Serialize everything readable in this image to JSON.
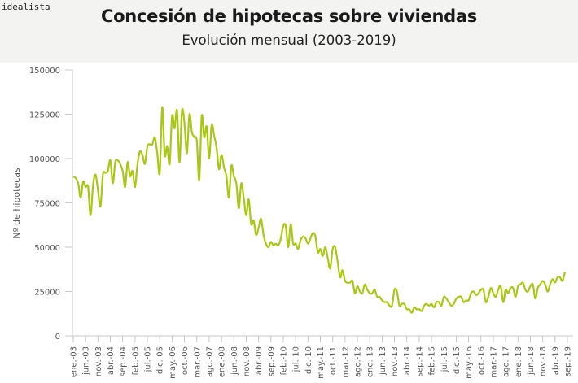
{
  "brand": {
    "logo_text": "idealista"
  },
  "header": {
    "title": "Concesión de hipotecas sobre viviendas",
    "subtitle": "Evolución mensual (2003-2019)"
  },
  "chart_data": {
    "type": "line",
    "title": "Concesión de hipotecas sobre viviendas",
    "subtitle": "Evolución mensual (2003-2019)",
    "xlabel": "",
    "ylabel": "Nº de hipotecas",
    "ylim": [
      0,
      150000
    ],
    "yticks": [
      0,
      25000,
      50000,
      75000,
      100000,
      125000,
      150000
    ],
    "ytick_labels": [
      "0",
      "25000",
      "50000",
      "75000",
      "100000",
      "125000",
      "150000"
    ],
    "grid": false,
    "legend": "none",
    "line_color": "#a8c814",
    "x_start": "2003-01",
    "x_end": "2019-09",
    "x_tick_every_months": 5,
    "xtick_labels": [
      "ene.-03",
      "jun.-03",
      "nov.-03",
      "abr.-04",
      "sep.-04",
      "feb.-05",
      "jul.-05",
      "dic.-05",
      "may.-06",
      "oct.-06",
      "mar.-07",
      "ago.-07",
      "ene.-08",
      "jun.-08",
      "nov.-08",
      "abr.-09",
      "sep.-09",
      "feb.-10",
      "jul.-10",
      "dic.-10",
      "may.-11",
      "oct.-11",
      "mar.-12",
      "ago.-12",
      "ene.-13",
      "jun.-13",
      "nov.-13",
      "abr.-14",
      "sep.-14",
      "feb.-15",
      "jul.-15",
      "dic.-15",
      "may.-16",
      "oct.-16",
      "mar.-17",
      "ago.-17",
      "ene.-18",
      "jun.-18",
      "nov.-18",
      "abr.-19",
      "sep.-19"
    ],
    "series": [
      {
        "name": "Nº de hipotecas",
        "values": [
          90000,
          89000,
          86000,
          78000,
          87000,
          84000,
          84000,
          68000,
          85000,
          91000,
          82000,
          73000,
          91000,
          92000,
          93000,
          99000,
          86000,
          98000,
          99000,
          97000,
          93000,
          84000,
          98000,
          90000,
          93000,
          84000,
          97000,
          104000,
          102000,
          97000,
          107000,
          108000,
          108000,
          112000,
          103000,
          92000,
          129000,
          102000,
          107000,
          97000,
          124000,
          117000,
          127000,
          98000,
          127000,
          120000,
          103000,
          125000,
          115000,
          112000,
          110000,
          88000,
          124000,
          112000,
          118000,
          100000,
          119000,
          113000,
          106000,
          94000,
          102000,
          95000,
          90000,
          78000,
          96000,
          90000,
          86000,
          72000,
          86000,
          78000,
          68000,
          77000,
          63000,
          65000,
          57000,
          61000,
          66000,
          57000,
          52000,
          50000,
          53000,
          51000,
          52000,
          51000,
          55000,
          62000,
          62000,
          50000,
          63000,
          52000,
          52000,
          49000,
          54000,
          56000,
          55000,
          52000,
          55000,
          58000,
          56000,
          47000,
          49000,
          45000,
          50000,
          44000,
          38000,
          49000,
          50000,
          42000,
          33000,
          37000,
          31000,
          30000,
          30000,
          31000,
          24000,
          28000,
          25000,
          24000,
          29000,
          26000,
          24000,
          24000,
          26000,
          22000,
          22000,
          20000,
          19000,
          19000,
          17000,
          17000,
          26000,
          25000,
          17000,
          18000,
          18000,
          15000,
          15000,
          13000,
          16000,
          15000,
          15000,
          14000,
          17000,
          18000,
          17000,
          18000,
          16000,
          19000,
          19000,
          17000,
          22000,
          21000,
          19000,
          17000,
          18000,
          21000,
          22000,
          22000,
          19000,
          20000,
          20000,
          24000,
          25000,
          23000,
          24000,
          26000,
          26000,
          19000,
          22000,
          27000,
          24000,
          22000,
          26000,
          28000,
          19000,
          26000,
          24000,
          27000,
          27000,
          22000,
          28000,
          29000,
          30000,
          26000,
          25000,
          28000,
          29000,
          21000,
          27000,
          29000,
          31000,
          29000,
          25000,
          29000,
          32000,
          30000,
          33000,
          33000,
          31000,
          36000
        ]
      }
    ]
  }
}
